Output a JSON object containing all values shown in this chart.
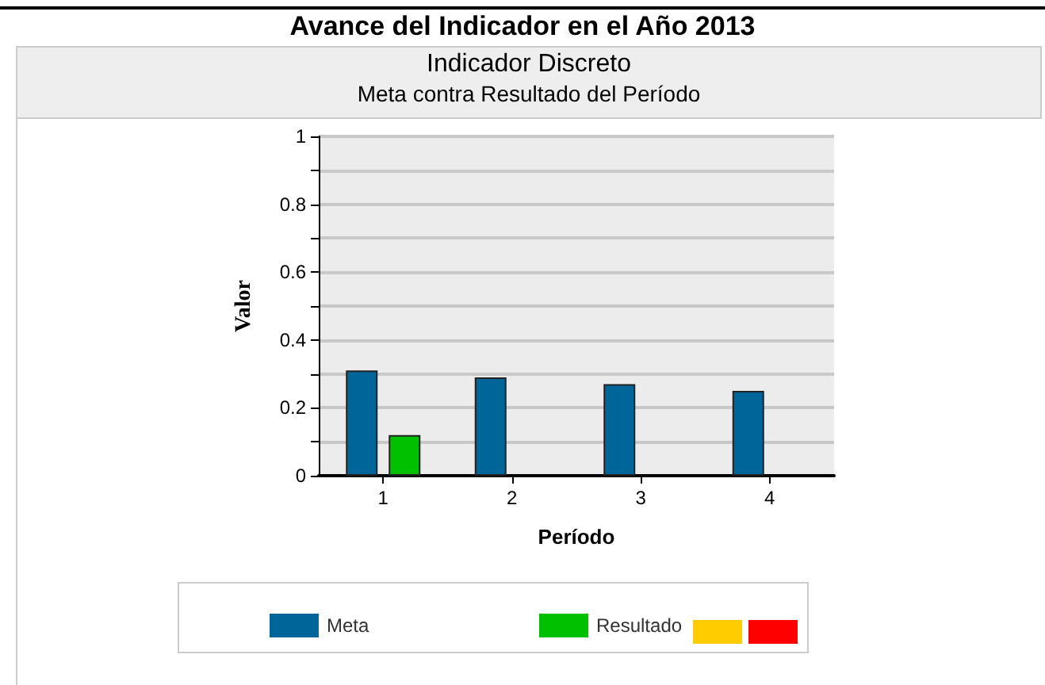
{
  "chart_data": {
    "type": "bar",
    "title": "Avance del Indicador en el Año 2013",
    "subtitle": "Indicador Discreto",
    "annotations": [
      "Meta contra Resultado del Período"
    ],
    "categories": [
      "1",
      "2",
      "3",
      "4"
    ],
    "series": [
      {
        "name": "Meta",
        "color": "#006699",
        "values": [
          0.31,
          0.29,
          0.27,
          0.25
        ]
      },
      {
        "name": "Resultado",
        "color": "#00c000",
        "values": [
          0.12,
          null,
          null,
          null
        ]
      }
    ],
    "xlabel": "Período",
    "ylabel": "Valor",
    "ylim": [
      0,
      1
    ],
    "yticks": [
      0,
      {
        "value": 0.1,
        "label": null
      },
      0.2,
      {
        "value": 0.3,
        "label": null
      },
      0.4,
      {
        "value": 0.5,
        "label": null
      },
      0.6,
      {
        "value": 0.7,
        "label": null
      },
      0.8,
      {
        "value": 0.9,
        "label": null
      },
      1
    ],
    "grid": "y",
    "legend": "bottom"
  }
}
